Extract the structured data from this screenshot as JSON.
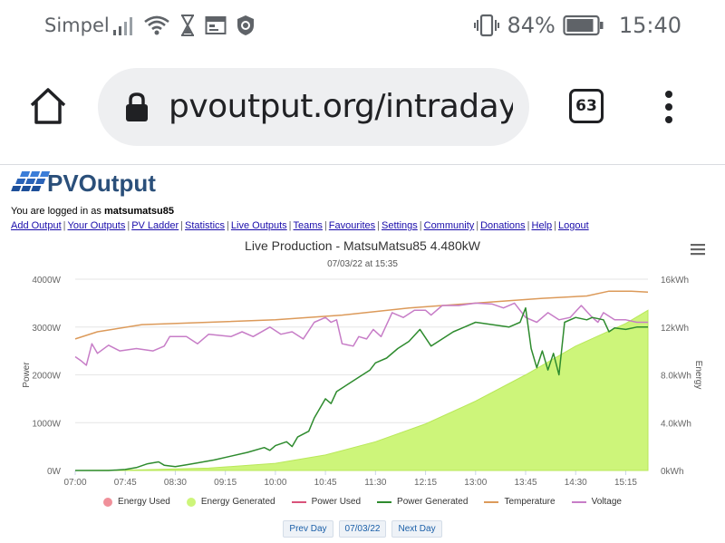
{
  "status": {
    "carrier": "Simpel",
    "battery": "84%",
    "time": "15:40"
  },
  "browser": {
    "url": "pvoutput.org/intraday.jsp",
    "tab_count": "63"
  },
  "site": {
    "logo_text": "PVOutput",
    "logged_prefix": "You are logged in as ",
    "user": "matsumatsu85",
    "nav": [
      "Add Output",
      "Your Outputs",
      "PV Ladder",
      "Statistics",
      "Live Outputs",
      "Teams",
      "Favourites",
      "Settings",
      "Community",
      "Donations",
      "Help",
      "Logout"
    ]
  },
  "chart_data": {
    "type": "line",
    "title": "Live Production - MatsuMatsu85 4.480kW",
    "subtitle": "07/03/22 at 15:35",
    "ylabel": "Power",
    "ylabel2": "Energy",
    "ylim": [
      0,
      4000
    ],
    "y2lim": [
      0,
      16
    ],
    "yticks": [
      "0W",
      "1000W",
      "2000W",
      "3000W",
      "4000W"
    ],
    "y2ticks": [
      "0kWh",
      "4.0kWh",
      "8.0kWh",
      "12kWh",
      "16kWh"
    ],
    "xticks": [
      "07:00",
      "07:45",
      "08:30",
      "09:15",
      "10:00",
      "10:45",
      "11:30",
      "12:15",
      "13:00",
      "13:45",
      "14:30",
      "15:15"
    ],
    "x_minutes": [
      0,
      45,
      90,
      135,
      180,
      225,
      270,
      315,
      360,
      405,
      450,
      495
    ],
    "legend": [
      "Energy Used",
      "Energy Generated",
      "Power Used",
      "Power Generated",
      "Temperature",
      "Voltage"
    ],
    "colors": {
      "energy_used": "#f0909a",
      "energy_generated": "#cdf57a",
      "power_used": "#d9537a",
      "power_generated": "#2e8b2e",
      "temperature": "#dc9a5a",
      "voltage": "#c77dc7"
    },
    "series": [
      {
        "name": "Power Generated",
        "axis": "left",
        "points": [
          [
            0,
            0
          ],
          [
            30,
            0
          ],
          [
            45,
            20
          ],
          [
            55,
            60
          ],
          [
            65,
            140
          ],
          [
            75,
            180
          ],
          [
            80,
            110
          ],
          [
            90,
            80
          ],
          [
            100,
            120
          ],
          [
            110,
            160
          ],
          [
            125,
            220
          ],
          [
            140,
            300
          ],
          [
            155,
            380
          ],
          [
            170,
            480
          ],
          [
            175,
            420
          ],
          [
            180,
            520
          ],
          [
            190,
            600
          ],
          [
            195,
            500
          ],
          [
            200,
            700
          ],
          [
            210,
            820
          ],
          [
            215,
            1100
          ],
          [
            220,
            1300
          ],
          [
            225,
            1500
          ],
          [
            230,
            1400
          ],
          [
            235,
            1650
          ],
          [
            245,
            1800
          ],
          [
            255,
            1950
          ],
          [
            265,
            2100
          ],
          [
            270,
            2250
          ],
          [
            280,
            2350
          ],
          [
            290,
            2550
          ],
          [
            300,
            2700
          ],
          [
            310,
            2950
          ],
          [
            320,
            2600
          ],
          [
            330,
            2750
          ],
          [
            340,
            2900
          ],
          [
            350,
            3000
          ],
          [
            360,
            3100
          ],
          [
            375,
            3050
          ],
          [
            390,
            3000
          ],
          [
            400,
            3100
          ],
          [
            405,
            3400
          ],
          [
            410,
            2550
          ],
          [
            415,
            2150
          ],
          [
            420,
            2500
          ],
          [
            425,
            2100
          ],
          [
            430,
            2450
          ],
          [
            435,
            2000
          ],
          [
            440,
            3100
          ],
          [
            450,
            3200
          ],
          [
            460,
            3150
          ],
          [
            465,
            3200
          ],
          [
            475,
            3150
          ],
          [
            480,
            2900
          ],
          [
            485,
            2980
          ],
          [
            495,
            2950
          ],
          [
            505,
            3000
          ],
          [
            515,
            3000
          ]
        ]
      },
      {
        "name": "Temperature",
        "axis": "left",
        "points": [
          [
            0,
            2750
          ],
          [
            20,
            2900
          ],
          [
            60,
            3050
          ],
          [
            120,
            3100
          ],
          [
            180,
            3150
          ],
          [
            240,
            3250
          ],
          [
            300,
            3400
          ],
          [
            360,
            3500
          ],
          [
            420,
            3600
          ],
          [
            460,
            3650
          ],
          [
            480,
            3750
          ],
          [
            500,
            3750
          ],
          [
            515,
            3730
          ]
        ]
      },
      {
        "name": "Voltage",
        "axis": "left",
        "points": [
          [
            0,
            2380
          ],
          [
            5,
            2300
          ],
          [
            10,
            2200
          ],
          [
            15,
            2650
          ],
          [
            20,
            2450
          ],
          [
            30,
            2620
          ],
          [
            40,
            2500
          ],
          [
            55,
            2550
          ],
          [
            70,
            2500
          ],
          [
            80,
            2600
          ],
          [
            85,
            2800
          ],
          [
            100,
            2800
          ],
          [
            110,
            2650
          ],
          [
            120,
            2850
          ],
          [
            140,
            2800
          ],
          [
            150,
            2900
          ],
          [
            160,
            2800
          ],
          [
            175,
            3000
          ],
          [
            185,
            2850
          ],
          [
            195,
            2900
          ],
          [
            205,
            2750
          ],
          [
            215,
            3100
          ],
          [
            225,
            3200
          ],
          [
            230,
            3100
          ],
          [
            235,
            3150
          ],
          [
            240,
            2650
          ],
          [
            250,
            2600
          ],
          [
            255,
            2800
          ],
          [
            262,
            2750
          ],
          [
            268,
            2950
          ],
          [
            275,
            2800
          ],
          [
            285,
            3300
          ],
          [
            295,
            3200
          ],
          [
            305,
            3350
          ],
          [
            315,
            3350
          ],
          [
            320,
            3250
          ],
          [
            330,
            3450
          ],
          [
            345,
            3450
          ],
          [
            360,
            3500
          ],
          [
            375,
            3480
          ],
          [
            385,
            3400
          ],
          [
            395,
            3500
          ],
          [
            405,
            3200
          ],
          [
            415,
            3100
          ],
          [
            425,
            3300
          ],
          [
            435,
            3150
          ],
          [
            445,
            3200
          ],
          [
            455,
            3450
          ],
          [
            465,
            3200
          ],
          [
            470,
            3100
          ],
          [
            475,
            3300
          ],
          [
            485,
            3150
          ],
          [
            495,
            3150
          ],
          [
            505,
            3100
          ],
          [
            515,
            3100
          ]
        ]
      },
      {
        "name": "Energy Generated",
        "axis": "right",
        "type": "area",
        "points": [
          [
            0,
            0
          ],
          [
            60,
            0.05
          ],
          [
            120,
            0.2
          ],
          [
            180,
            0.6
          ],
          [
            225,
            1.3
          ],
          [
            270,
            2.4
          ],
          [
            315,
            3.9
          ],
          [
            360,
            5.8
          ],
          [
            405,
            8.0
          ],
          [
            450,
            10.4
          ],
          [
            495,
            12.3
          ],
          [
            515,
            13.4
          ]
        ]
      }
    ]
  },
  "buttons": {
    "prev": "Prev Day",
    "date": "07/03/22",
    "next": "Next Day"
  }
}
